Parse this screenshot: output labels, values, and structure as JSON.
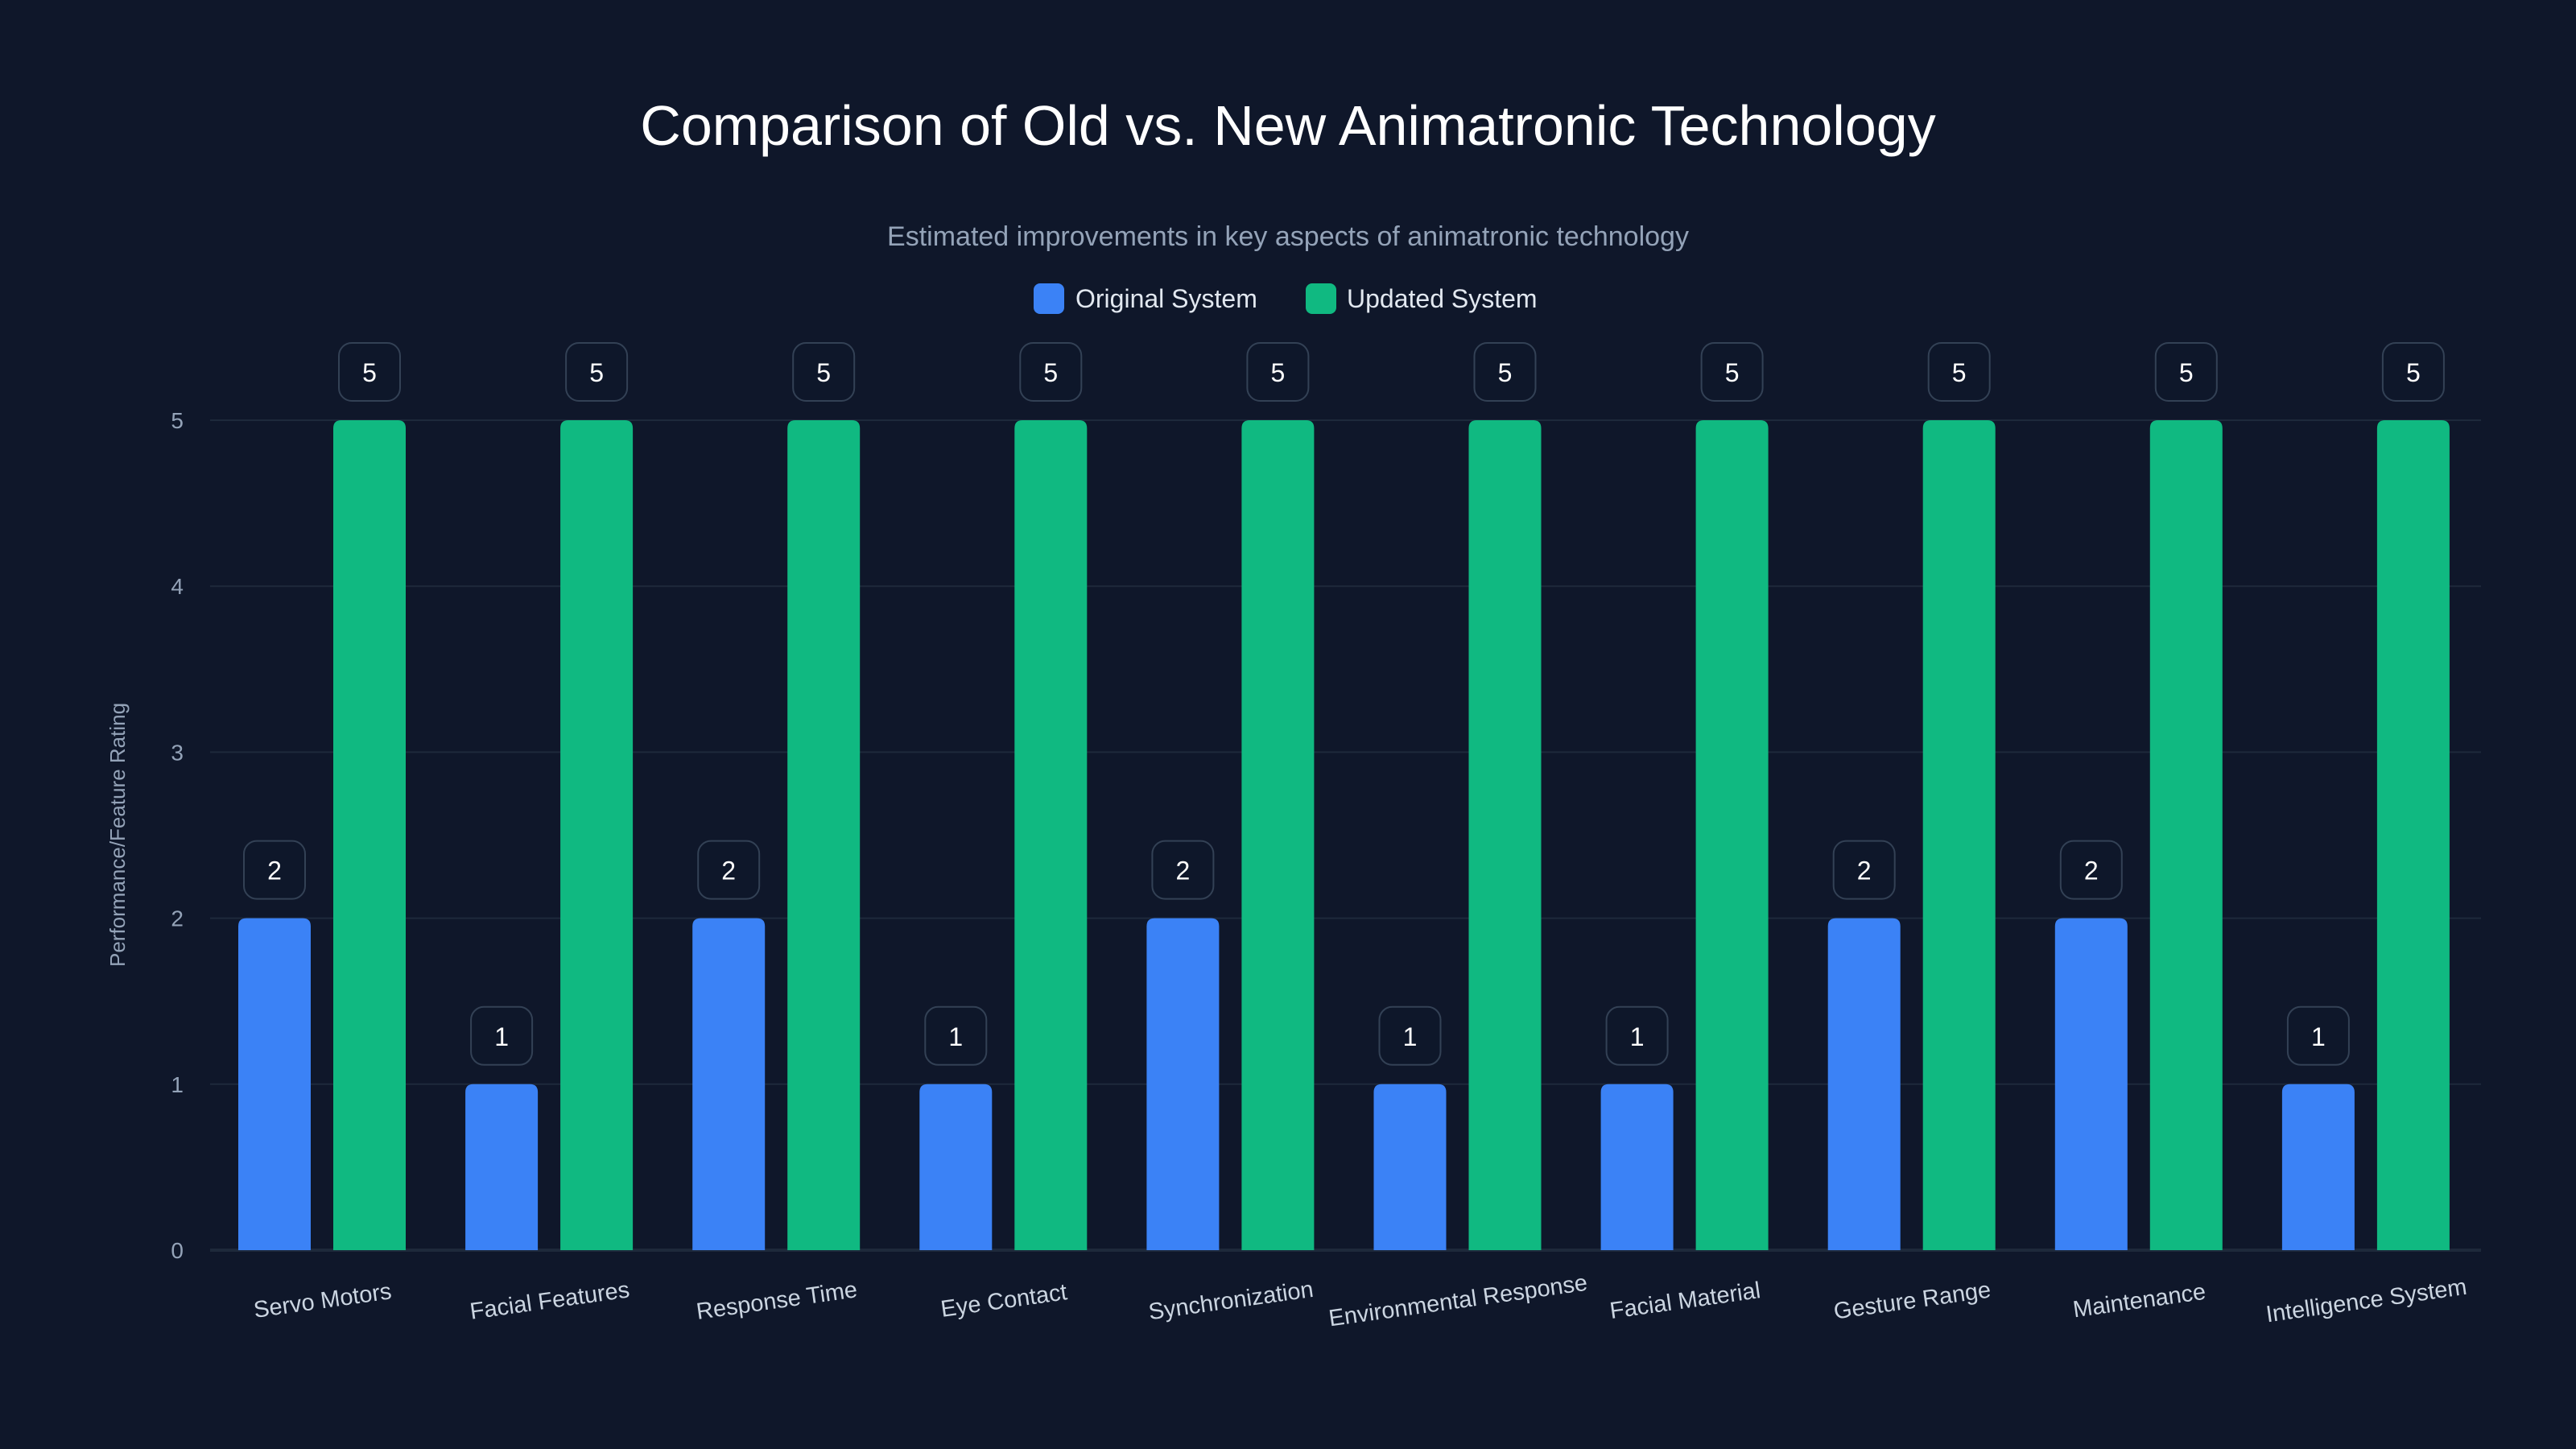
{
  "chart_data": {
    "type": "bar",
    "title": "Comparison of Old vs. New Animatronic Technology",
    "subtitle": "Estimated improvements in key aspects of animatronic technology",
    "xlabel": "",
    "ylabel": "Performance/Feature Rating",
    "ylim": [
      0,
      5
    ],
    "yticks": [
      "0",
      "1",
      "2",
      "3",
      "4",
      "5"
    ],
    "grid": true,
    "legend_position": "top-center",
    "categories": [
      "Servo Motors",
      "Facial Features",
      "Response Time",
      "Eye Contact",
      "Synchronization",
      "Environmental Response",
      "Facial Material",
      "Gesture Range",
      "Maintenance",
      "Intelligence System"
    ],
    "series": [
      {
        "name": "Original System",
        "color": "#3b82f6",
        "values": [
          2,
          1,
          2,
          1,
          2,
          1,
          1,
          2,
          2,
          1
        ]
      },
      {
        "name": "Updated System",
        "color": "#10b981",
        "values": [
          5,
          5,
          5,
          5,
          5,
          5,
          5,
          5,
          5,
          5
        ]
      }
    ]
  }
}
